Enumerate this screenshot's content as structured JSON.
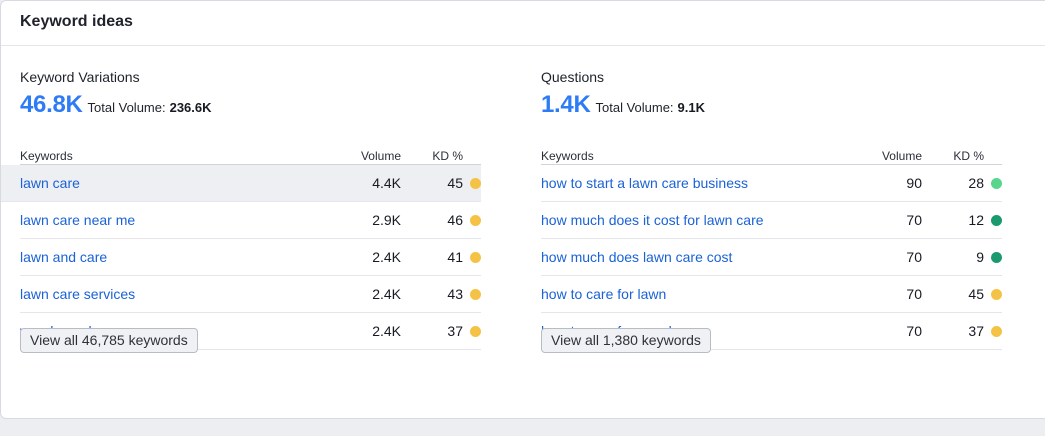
{
  "widget": {
    "title": "Keyword ideas"
  },
  "variations": {
    "label": "Keyword Variations",
    "count": "46.8K",
    "total_volume_label": "Total Volume:",
    "total_volume": "236.6K",
    "columns": {
      "keywords": "Keywords",
      "volume": "Volume",
      "kd": "KD %"
    },
    "rows": [
      {
        "keyword": "lawn care",
        "volume": "4.4K",
        "kd": "45",
        "dot_color": "#f4c346"
      },
      {
        "keyword": "lawn care near me",
        "volume": "2.9K",
        "kd": "46",
        "dot_color": "#f4c346"
      },
      {
        "keyword": "lawn and care",
        "volume": "2.4K",
        "kd": "41",
        "dot_color": "#f4c346"
      },
      {
        "keyword": "lawn care services",
        "volume": "2.4K",
        "kd": "43",
        "dot_color": "#f4c346"
      },
      {
        "keyword": "weed man lawn care",
        "volume": "2.4K",
        "kd": "37",
        "dot_color": "#f4c346"
      }
    ],
    "view_all": "View all 46,785 keywords"
  },
  "questions": {
    "label": "Questions",
    "count": "1.4K",
    "total_volume_label": "Total Volume:",
    "total_volume": "9.1K",
    "columns": {
      "keywords": "Keywords",
      "volume": "Volume",
      "kd": "KD %"
    },
    "rows": [
      {
        "keyword": "how to start a lawn care business",
        "volume": "90",
        "kd": "28",
        "dot_color": "#59d68c"
      },
      {
        "keyword": "how much does it cost for lawn care",
        "volume": "70",
        "kd": "12",
        "dot_color": "#1b9a6f"
      },
      {
        "keyword": "how much does lawn care cost",
        "volume": "70",
        "kd": "9",
        "dot_color": "#1b9a6f"
      },
      {
        "keyword": "how to care for lawn",
        "volume": "70",
        "kd": "45",
        "dot_color": "#f4c346"
      },
      {
        "keyword": "how to care for your lawn",
        "volume": "70",
        "kd": "37",
        "dot_color": "#f4c346"
      }
    ],
    "view_all": "View all 1,380 keywords"
  }
}
